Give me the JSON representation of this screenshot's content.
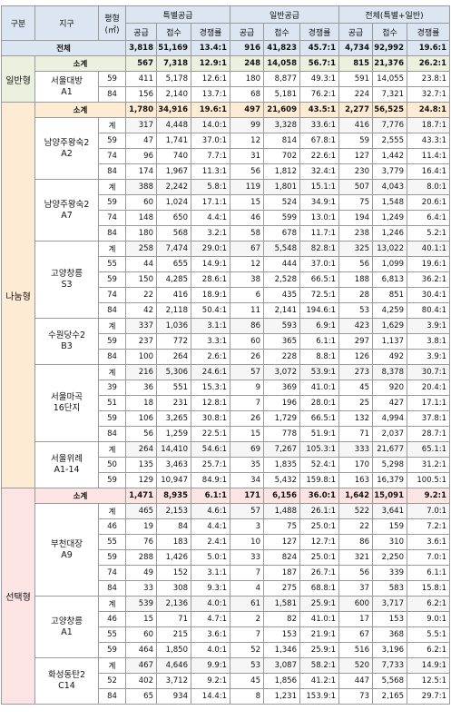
{
  "header": {
    "division": "구분",
    "site": "지구",
    "size": "평형",
    "size_unit": "(㎡)",
    "special": "특별공급",
    "general": "일반공급",
    "all": "전체(특별+일반)",
    "supply": "공급",
    "applied": "접수",
    "ratio": "경쟁률"
  },
  "total": {
    "label": "전체",
    "values": [
      "3,818",
      "51,169",
      "13.4:1",
      "916",
      "41,823",
      "45.7:1",
      "4,734",
      "92,992",
      "19.6:1"
    ]
  },
  "groups": [
    {
      "label": "일반형",
      "subtotal": {
        "label": "소계",
        "values": [
          "567",
          "7,318",
          "12.9:1",
          "248",
          "14,058",
          "56.7:1",
          "815",
          "21,376",
          "26.2:1"
        ]
      },
      "sites": [
        {
          "name": "서울대방",
          "code": "A1",
          "rows": [
            {
              "size": "59",
              "values": [
                "411",
                "5,178",
                "12.6:1",
                "180",
                "8,877",
                "49.3:1",
                "591",
                "14,055",
                "23.8:1"
              ]
            },
            {
              "size": "84",
              "values": [
                "156",
                "2,140",
                "13.7:1",
                "68",
                "5,181",
                "76.2:1",
                "224",
                "7,321",
                "32.7:1"
              ]
            }
          ]
        }
      ]
    },
    {
      "label": "나눔형",
      "subtotal": {
        "label": "소계",
        "values": [
          "1,780",
          "34,916",
          "19.6:1",
          "497",
          "21,609",
          "43.5:1",
          "2,277",
          "56,525",
          "24.8:1"
        ]
      },
      "sites": [
        {
          "name": "남양주왕숙2",
          "code": "A2",
          "rows": [
            {
              "size": "계",
              "values": [
                "317",
                "4,448",
                "14.0:1",
                "99",
                "3,328",
                "33.6:1",
                "416",
                "7,776",
                "18.7:1"
              ]
            },
            {
              "size": "59",
              "values": [
                "47",
                "1,741",
                "37.0:1",
                "12",
                "814",
                "67.8:1",
                "59",
                "2,555",
                "43.3:1"
              ]
            },
            {
              "size": "74",
              "values": [
                "96",
                "740",
                "7.7:1",
                "31",
                "702",
                "22.6:1",
                "127",
                "1,442",
                "11.4:1"
              ]
            },
            {
              "size": "84",
              "values": [
                "174",
                "1,967",
                "11.3:1",
                "56",
                "1,812",
                "32.4:1",
                "230",
                "3,779",
                "16.4:1"
              ]
            }
          ]
        },
        {
          "name": "남양주왕숙2",
          "code": "A7",
          "rows": [
            {
              "size": "계",
              "values": [
                "388",
                "2,242",
                "5.8:1",
                "119",
                "1,801",
                "15.1:1",
                "507",
                "4,043",
                "8.0:1"
              ]
            },
            {
              "size": "59",
              "values": [
                "60",
                "1,024",
                "17.1:1",
                "15",
                "524",
                "34.9:1",
                "75",
                "1,548",
                "20.6:1"
              ]
            },
            {
              "size": "74",
              "values": [
                "148",
                "650",
                "4.4:1",
                "46",
                "599",
                "13.0:1",
                "194",
                "1,249",
                "6.4:1"
              ]
            },
            {
              "size": "84",
              "values": [
                "180",
                "568",
                "3.2:1",
                "58",
                "678",
                "11.7:1",
                "238",
                "1,246",
                "5.2:1"
              ]
            }
          ]
        },
        {
          "name": "고양창릉",
          "code": "S3",
          "rows": [
            {
              "size": "계",
              "values": [
                "258",
                "7,474",
                "29.0:1",
                "67",
                "5,548",
                "82.8:1",
                "325",
                "13,022",
                "40.1:1"
              ]
            },
            {
              "size": "55",
              "values": [
                "44",
                "655",
                "14.9:1",
                "12",
                "444",
                "37.0:1",
                "56",
                "1,099",
                "19.6:1"
              ]
            },
            {
              "size": "59",
              "values": [
                "150",
                "4,285",
                "28.6:1",
                "38",
                "2,528",
                "66.5:1",
                "188",
                "6,813",
                "36.2:1"
              ]
            },
            {
              "size": "74",
              "values": [
                "22",
                "416",
                "18.9:1",
                "6",
                "435",
                "72.5:1",
                "28",
                "851",
                "30.4:1"
              ]
            },
            {
              "size": "84",
              "values": [
                "42",
                "2,118",
                "50.4:1",
                "11",
                "2,141",
                "194.6:1",
                "53",
                "4,259",
                "80.4:1"
              ]
            }
          ]
        },
        {
          "name": "수원당수2",
          "code": "B3",
          "rows": [
            {
              "size": "계",
              "values": [
                "337",
                "1,036",
                "3.1:1",
                "86",
                "593",
                "6.9:1",
                "423",
                "1,629",
                "3.9:1"
              ]
            },
            {
              "size": "59",
              "values": [
                "237",
                "772",
                "3.3:1",
                "60",
                "365",
                "6.1:1",
                "297",
                "1,137",
                "3.8:1"
              ]
            },
            {
              "size": "84",
              "values": [
                "100",
                "264",
                "2.6:1",
                "26",
                "228",
                "8.8:1",
                "126",
                "492",
                "3.9:1"
              ]
            }
          ]
        },
        {
          "name": "서울마곡",
          "code": "16단지",
          "rows": [
            {
              "size": "계",
              "values": [
                "216",
                "5,306",
                "24.6:1",
                "57",
                "3,072",
                "53.9:1",
                "273",
                "8,378",
                "30.7:1"
              ]
            },
            {
              "size": "39",
              "values": [
                "36",
                "551",
                "15.3:1",
                "9",
                "369",
                "41.0:1",
                "45",
                "920",
                "20.4:1"
              ]
            },
            {
              "size": "51",
              "values": [
                "18",
                "231",
                "12.8:1",
                "7",
                "196",
                "28.0:1",
                "25",
                "427",
                "17.1:1"
              ]
            },
            {
              "size": "59",
              "values": [
                "106",
                "3,265",
                "30.8:1",
                "26",
                "1,729",
                "66.5:1",
                "132",
                "4,994",
                "37.8:1"
              ]
            },
            {
              "size": "84",
              "values": [
                "56",
                "1,259",
                "22.5:1",
                "15",
                "778",
                "51.9:1",
                "71",
                "2,037",
                "28.7:1"
              ]
            }
          ]
        },
        {
          "name": "서울위례",
          "code": "A1-14",
          "rows": [
            {
              "size": "계",
              "values": [
                "264",
                "14,410",
                "54.6:1",
                "69",
                "7,267",
                "105.3:1",
                "333",
                "21,677",
                "65.1:1"
              ]
            },
            {
              "size": "50",
              "values": [
                "135",
                "3,463",
                "25.7:1",
                "35",
                "1,835",
                "52.4:1",
                "170",
                "5,298",
                "31.2:1"
              ]
            },
            {
              "size": "59",
              "values": [
                "129",
                "10,947",
                "84.9:1",
                "34",
                "5,432",
                "159.8:1",
                "163",
                "16,379",
                "100.5:1"
              ]
            }
          ]
        }
      ]
    },
    {
      "label": "선택형",
      "subtotal": {
        "label": "소계",
        "values": [
          "1,471",
          "8,935",
          "6.1:1",
          "171",
          "6,156",
          "36.0:1",
          "1,642",
          "15,091",
          "9.2:1"
        ]
      },
      "sites": [
        {
          "name": "부천대장",
          "code": "A9",
          "rows": [
            {
              "size": "계",
              "values": [
                "465",
                "2,153",
                "4.6:1",
                "57",
                "1,488",
                "26.1:1",
                "522",
                "3,641",
                "7.0:1"
              ]
            },
            {
              "size": "46",
              "values": [
                "19",
                "84",
                "4.4:1",
                "3",
                "75",
                "25.0:1",
                "22",
                "159",
                "7.2:1"
              ]
            },
            {
              "size": "55",
              "values": [
                "76",
                "183",
                "2.4:1",
                "10",
                "127",
                "12.7:1",
                "86",
                "310",
                "3.6:1"
              ]
            },
            {
              "size": "59",
              "values": [
                "288",
                "1,426",
                "5.0:1",
                "33",
                "824",
                "25.0:1",
                "321",
                "2,250",
                "7.0:1"
              ]
            },
            {
              "size": "74",
              "values": [
                "49",
                "152",
                "3.1:1",
                "7",
                "187",
                "26.7:1",
                "56",
                "339",
                "6.1:1"
              ]
            },
            {
              "size": "84",
              "values": [
                "33",
                "308",
                "9.3:1",
                "4",
                "275",
                "68.8:1",
                "37",
                "583",
                "15.8:1"
              ]
            }
          ]
        },
        {
          "name": "고양창릉",
          "code": "A1",
          "rows": [
            {
              "size": "계",
              "values": [
                "539",
                "2,136",
                "4.0:1",
                "61",
                "1,581",
                "25.9:1",
                "600",
                "3,717",
                "6.2:1"
              ]
            },
            {
              "size": "46",
              "values": [
                "15",
                "71",
                "4.7:1",
                "2",
                "82",
                "41.0:1",
                "17",
                "153",
                "9.0:1"
              ]
            },
            {
              "size": "55",
              "values": [
                "60",
                "215",
                "3.6:1",
                "7",
                "153",
                "21.9:1",
                "67",
                "368",
                "5.5:1"
              ]
            },
            {
              "size": "59",
              "values": [
                "464",
                "1,850",
                "4.0:1",
                "52",
                "1,346",
                "25.9:1",
                "516",
                "3,196",
                "6.2:1"
              ]
            }
          ]
        },
        {
          "name": "화성동탄2",
          "code": "C14",
          "rows": [
            {
              "size": "계",
              "values": [
                "467",
                "4,646",
                "9.9:1",
                "53",
                "3,087",
                "58.2:1",
                "520",
                "7,733",
                "14.9:1"
              ]
            },
            {
              "size": "52",
              "values": [
                "402",
                "3,712",
                "9.2:1",
                "45",
                "1,856",
                "41.2:1",
                "447",
                "5,568",
                "12.5:1"
              ]
            },
            {
              "size": "84",
              "values": [
                "65",
                "934",
                "14.4:1",
                "8",
                "1,231",
                "153.9:1",
                "73",
                "2,165",
                "29.7:1"
              ]
            }
          ]
        }
      ]
    }
  ]
}
